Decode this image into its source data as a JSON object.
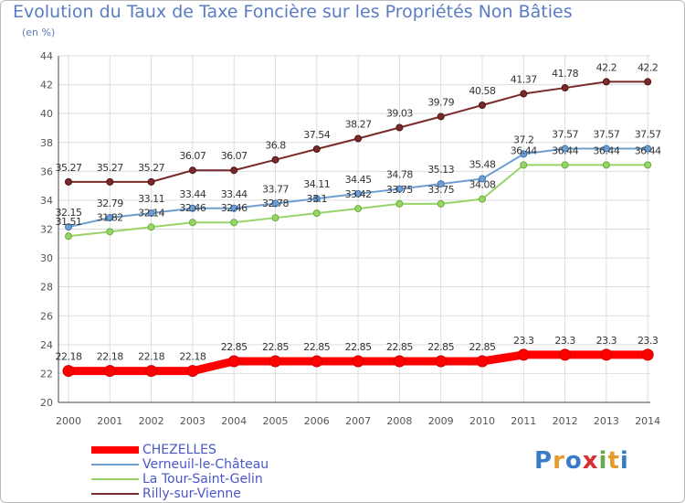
{
  "title": "Evolution du Taux de Taxe Foncière sur les Propriétés Non Bâties",
  "subtitle": "(en %)",
  "logo": "Proxiti",
  "chart_data": {
    "type": "line",
    "title": "Evolution du Taux de Taxe Foncière sur les Propriétés Non Bâties",
    "ylabel": "(en %)",
    "xlabel": "",
    "ylim": [
      20,
      44
    ],
    "yticks": [
      20,
      22,
      24,
      26,
      28,
      30,
      32,
      34,
      36,
      38,
      40,
      42,
      44
    ],
    "grid": true,
    "legend_position": "bottom-left",
    "x": [
      "2000",
      "2001",
      "2002",
      "2003",
      "2004",
      "2005",
      "2006",
      "2007",
      "2008",
      "2009",
      "2010",
      "2011",
      "2012",
      "2013",
      "2014"
    ],
    "series": [
      {
        "name": "CHEZELLES",
        "color": "#ff0000",
        "values": [
          22.18,
          22.18,
          22.18,
          22.18,
          22.85,
          22.85,
          22.85,
          22.85,
          22.85,
          22.85,
          22.85,
          23.3,
          23.3,
          23.3,
          23.3
        ],
        "labels": [
          "22.18",
          "22.18",
          "22.18",
          "22.18",
          "22.85",
          "22.85",
          "22.85",
          "22.85",
          "22.85",
          "22.85",
          "22.85",
          "23.3",
          "23.3",
          "23.3",
          "23.3"
        ]
      },
      {
        "name": "Verneuil-le-Château",
        "color": "#6f9fd0",
        "values": [
          32.15,
          32.79,
          33.11,
          33.44,
          33.44,
          33.77,
          34.11,
          34.45,
          34.78,
          35.13,
          35.48,
          37.2,
          37.57,
          37.57,
          37.57
        ],
        "labels": [
          "32.15",
          "32.79",
          "33.11",
          "33.44",
          "33.44",
          "33.77",
          "34.11",
          "34.45",
          "34.78",
          "35.13",
          "35.48",
          "37.2",
          "37.57",
          "37.57",
          "37.57"
        ]
      },
      {
        "name": "La Tour-Saint-Gelin",
        "color": "#98d468",
        "values": [
          31.51,
          31.82,
          32.14,
          32.46,
          32.46,
          32.78,
          33.1,
          33.42,
          33.75,
          33.75,
          34.08,
          36.44,
          36.44,
          36.44,
          36.44
        ],
        "labels": [
          "31.51",
          "31.82",
          "32.14",
          "32.46",
          "32.46",
          "32.78",
          "33.1",
          "33.42",
          "33.75",
          "33.75",
          "34.08",
          "36.44",
          "36.44",
          "36.44",
          "36.44"
        ]
      },
      {
        "name": "Rilly-sur-Vienne",
        "color": "#7a2a2a",
        "values": [
          35.27,
          35.27,
          35.27,
          36.07,
          36.07,
          36.8,
          37.54,
          38.27,
          39.03,
          39.79,
          40.58,
          41.37,
          41.78,
          42.2,
          42.2
        ],
        "labels": [
          "35.27",
          "35.27",
          "35.27",
          "36.07",
          "36.07",
          "36.8",
          "37.54",
          "38.27",
          "39.03",
          "39.79",
          "40.58",
          "41.37",
          "41.78",
          "42.2",
          "42.2"
        ]
      }
    ]
  }
}
